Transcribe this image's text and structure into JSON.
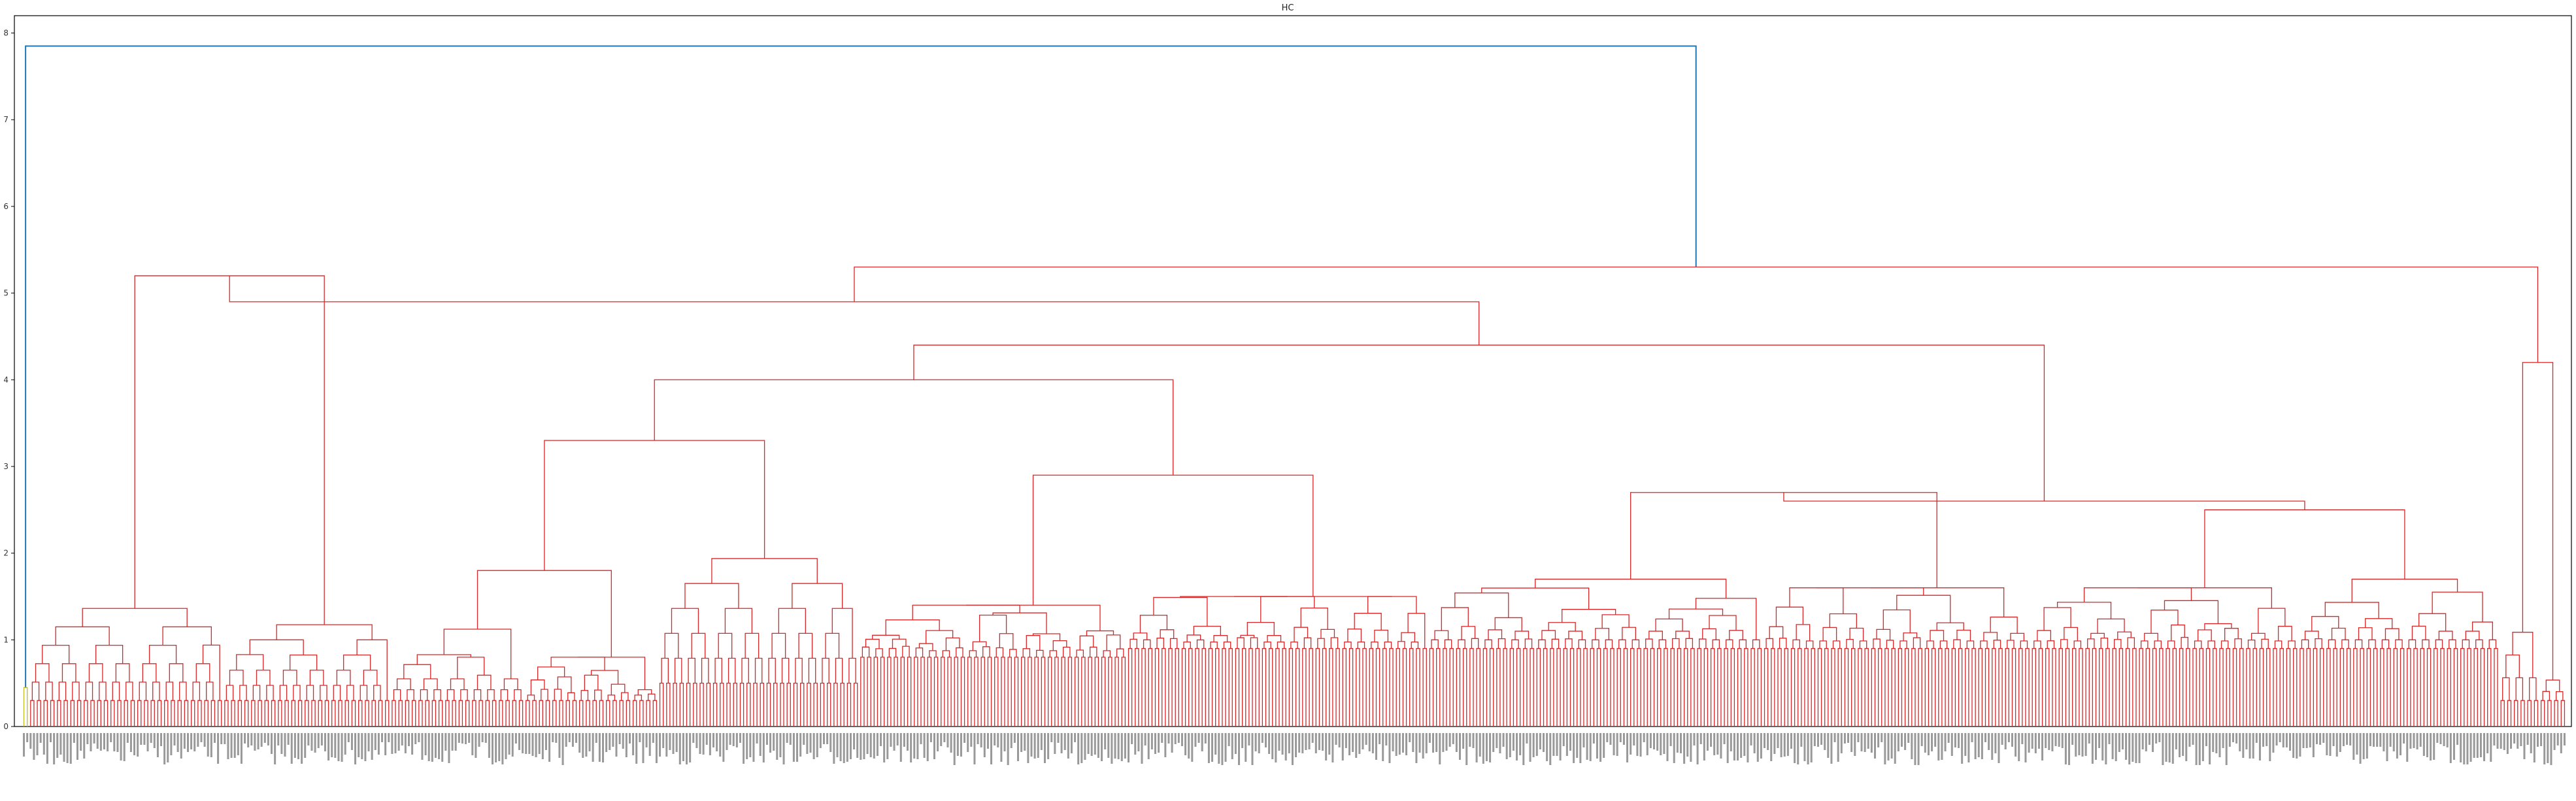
{
  "chart_data": {
    "type": "dendrogram",
    "title": "HC",
    "xlabel": "",
    "ylabel": "",
    "ylim": [
      0,
      8.2
    ],
    "y_ticks": [
      0,
      1,
      2,
      3,
      4,
      5,
      6,
      7,
      8
    ],
    "grid": false,
    "legend": "none",
    "leaf_count": 760,
    "leaf_labels_legible": false,
    "link_colors": {
      "root": "#1f77b4",
      "main_cluster": "#d62728",
      "small_cluster": "#bcbd22"
    },
    "root_merge_height": 7.85,
    "top_level_merge_heights": [
      5.3,
      5.2,
      5.0,
      4.9,
      4.5,
      4.4,
      4.2,
      4.0
    ],
    "main_cluster_dense_merge_range": [
      0.3,
      1.4
    ],
    "small_cluster_merge_height": 0.45
  }
}
